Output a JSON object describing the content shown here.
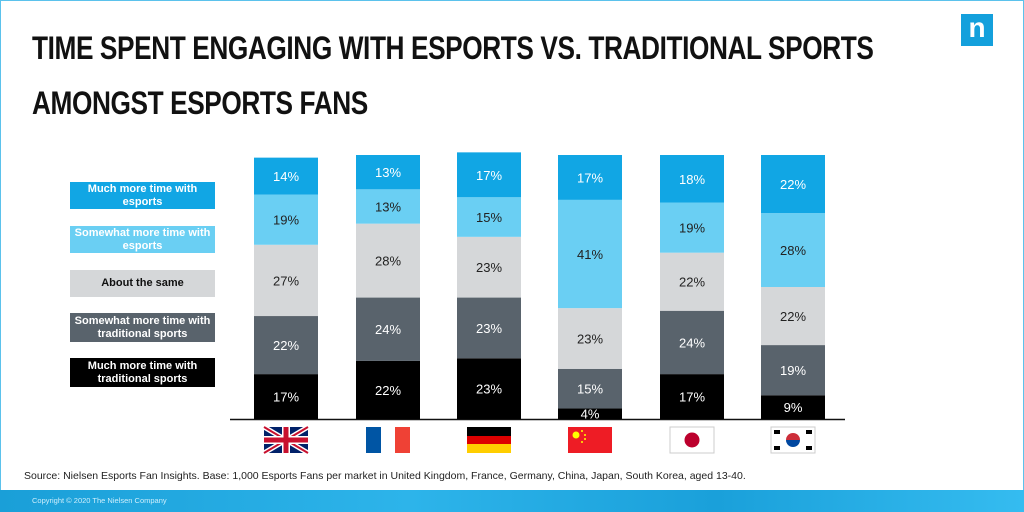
{
  "title_lines": [
    "TIME SPENT ENGAGING WITH ESPORTS VS. TRADITIONAL SPORTS",
    "AMONGST ESPORTS FANS"
  ],
  "logo_text": "n",
  "source": "Source: Nielsen Esports Fan Insights. Base: 1,000 Esports Fans per market in United Kingdom, France, Germany, China, Japan, South Korea, aged 13-40.",
  "copyright": "Copyright © 2020 The Nielsen Company",
  "colors": {
    "much_esports": "#11a6e4",
    "somewhat_esports": "#6acff3",
    "same": "#d5d7d9",
    "somewhat_trad": "#59636c",
    "much_trad": "#000000"
  },
  "chart_data": {
    "type": "bar",
    "stacked": true,
    "categories": [
      "United Kingdom",
      "France",
      "Germany",
      "China",
      "Japan",
      "South Korea"
    ],
    "series": [
      {
        "name": "Much more time with traditional sports",
        "values": [
          17,
          22,
          23,
          4,
          17,
          9
        ]
      },
      {
        "name": "Somewhat more time with traditional sports",
        "values": [
          22,
          24,
          23,
          15,
          24,
          19
        ]
      },
      {
        "name": "About the same",
        "values": [
          27,
          28,
          23,
          23,
          22,
          22
        ]
      },
      {
        "name": "Somewhat more time with esports",
        "values": [
          19,
          13,
          15,
          41,
          19,
          28
        ]
      },
      {
        "name": "Much more time with esports",
        "values": [
          14,
          13,
          17,
          17,
          18,
          22
        ]
      }
    ],
    "legend": [
      "Much more time with esports",
      "Somewhat more time with esports",
      "About the same",
      "Somewhat more time with traditional sports",
      "Much more time with traditional sports"
    ],
    "ylim": [
      0,
      100
    ],
    "value_suffix": "%",
    "legend_position": "left"
  }
}
